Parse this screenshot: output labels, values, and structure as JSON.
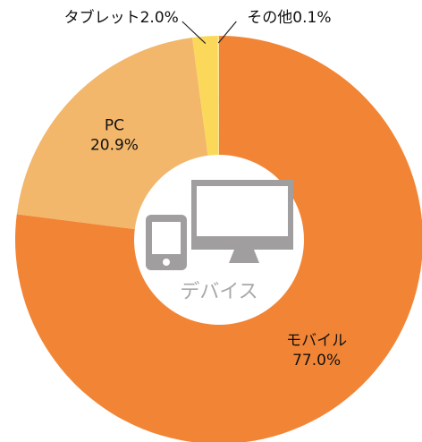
{
  "chart_data": {
    "type": "donut",
    "center_label": "デバイス",
    "categories": [
      "モバイル",
      "PC",
      "タブレット",
      "その他"
    ],
    "values": [
      77.0,
      20.9,
      2.0,
      0.1
    ],
    "value_labels": [
      "77.0%",
      "20.9%",
      "2.0%",
      "0.1%"
    ],
    "colors": [
      "#f28535",
      "#f2b76b",
      "#fbd85a",
      "#f7e6a0"
    ]
  }
}
